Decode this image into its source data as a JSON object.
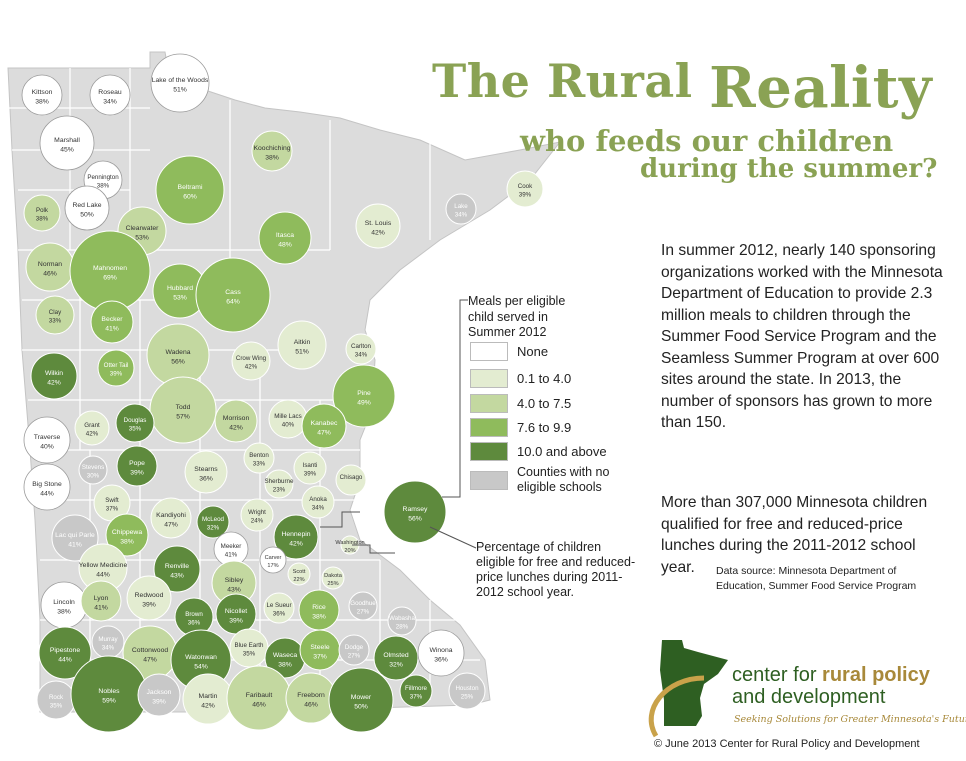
{
  "title": {
    "line1": "The Rural",
    "line1_big": "Reality",
    "line2": "who feeds our children",
    "line3": "during the summer?"
  },
  "intro": "In summer 2012, nearly 140 sponsoring organizations worked with the Minnesota Department of Education to provide 2.3 million meals to children through the Summer Food Service Program and the Seamless Summer Program at over 600 sites around the state. In 2013, the number of sponsors has grown to more than 150.",
  "stat": "More than 307,000 Minnesota children qualified for free and reduced-price lunches during the 2011-2012 school year.",
  "source": "Data source: Minnesota Department of Education, Summer Food Service Program",
  "legend": {
    "title": "Meals per eligible child served in Summer 2012",
    "items": [
      {
        "label": "None",
        "color": "#ffffff"
      },
      {
        "label": "0.1 to 4.0",
        "color": "#e3ecd1"
      },
      {
        "label": "4.0 to 7.5",
        "color": "#c3d8a0"
      },
      {
        "label": "7.6 to 9.9",
        "color": "#8fbb5c"
      },
      {
        "label": "10.0 and above",
        "color": "#5e8a3d"
      },
      {
        "label": "Counties with no eligible schools",
        "color": "#c8c8c8"
      }
    ]
  },
  "pct_note": "Percentage of children eligible for free and reduced-price lunches during 2011-2012 school year.",
  "logo": {
    "line1a": "center for ",
    "line1b": "rural policy",
    "line2": "and development",
    "tagline": "Seeking Solutions for Greater Minnesota's Future"
  },
  "copyright": "© June 2013 Center for Rural Policy and Development",
  "map_colors": {
    "state_fill": "#dcdcdc",
    "county_border": "#ffffff"
  },
  "counties": [
    {
      "name": "Kittson",
      "pct": "38%",
      "cat": 0
    },
    {
      "name": "Roseau",
      "pct": "34%",
      "cat": 0
    },
    {
      "name": "Lake of the Woods",
      "pct": "51%",
      "cat": 0
    },
    {
      "name": "Marshall",
      "pct": "45%",
      "cat": 0
    },
    {
      "name": "Pennington",
      "pct": "38%",
      "cat": 0
    },
    {
      "name": "Red Lake",
      "pct": "50%",
      "cat": 0
    },
    {
      "name": "Polk",
      "pct": "38%",
      "cat": 2
    },
    {
      "name": "Koochiching",
      "pct": "38%",
      "cat": 2
    },
    {
      "name": "Beltrami",
      "pct": "60%",
      "cat": 3
    },
    {
      "name": "Clearwater",
      "pct": "53%",
      "cat": 2
    },
    {
      "name": "Cook",
      "pct": "39%",
      "cat": 1
    },
    {
      "name": "Lake",
      "pct": "34%",
      "cat": 5
    },
    {
      "name": "St. Louis",
      "pct": "42%",
      "cat": 1
    },
    {
      "name": "Itasca",
      "pct": "48%",
      "cat": 3
    },
    {
      "name": "Norman",
      "pct": "46%",
      "cat": 2
    },
    {
      "name": "Mahnomen",
      "pct": "69%",
      "cat": 3
    },
    {
      "name": "Hubbard",
      "pct": "53%",
      "cat": 3
    },
    {
      "name": "Cass",
      "pct": "64%",
      "cat": 3
    },
    {
      "name": "Clay",
      "pct": "33%",
      "cat": 2
    },
    {
      "name": "Becker",
      "pct": "41%",
      "cat": 3
    },
    {
      "name": "Aitkin",
      "pct": "51%",
      "cat": 1
    },
    {
      "name": "Carlton",
      "pct": "34%",
      "cat": 1
    },
    {
      "name": "Wadena",
      "pct": "56%",
      "cat": 2
    },
    {
      "name": "Crow Wing",
      "pct": "42%",
      "cat": 1
    },
    {
      "name": "Wilkin",
      "pct": "42%",
      "cat": 4
    },
    {
      "name": "Otter Tail",
      "pct": "39%",
      "cat": 3
    },
    {
      "name": "Pine",
      "pct": "49%",
      "cat": 3
    },
    {
      "name": "Todd",
      "pct": "57%",
      "cat": 2
    },
    {
      "name": "Grant",
      "pct": "42%",
      "cat": 1
    },
    {
      "name": "Douglas",
      "pct": "35%",
      "cat": 4
    },
    {
      "name": "Morrison",
      "pct": "42%",
      "cat": 2
    },
    {
      "name": "Mille Lacs",
      "pct": "40%",
      "cat": 1
    },
    {
      "name": "Kanabec",
      "pct": "47%",
      "cat": 3
    },
    {
      "name": "Traverse",
      "pct": "40%",
      "cat": 0
    },
    {
      "name": "Stevens",
      "pct": "30%",
      "cat": 5
    },
    {
      "name": "Pope",
      "pct": "39%",
      "cat": 4
    },
    {
      "name": "Benton",
      "pct": "33%",
      "cat": 1
    },
    {
      "name": "Isanti",
      "pct": "39%",
      "cat": 1
    },
    {
      "name": "Stearns",
      "pct": "36%",
      "cat": 1
    },
    {
      "name": "Sherburne",
      "pct": "23%",
      "cat": 1
    },
    {
      "name": "Chisago",
      "pct": "",
      "cat": 1
    },
    {
      "name": "Big Stone",
      "pct": "44%",
      "cat": 0
    },
    {
      "name": "Swift",
      "pct": "37%",
      "cat": 1
    },
    {
      "name": "Anoka",
      "pct": "34%",
      "cat": 1
    },
    {
      "name": "Ramsey",
      "pct": "56%",
      "cat": 4
    },
    {
      "name": "Kandiyohi",
      "pct": "47%",
      "cat": 1
    },
    {
      "name": "McLeod",
      "pct": "32%",
      "cat": 4
    },
    {
      "name": "Wright",
      "pct": "24%",
      "cat": 1
    },
    {
      "name": "Hennepin",
      "pct": "42%",
      "cat": 4
    },
    {
      "name": "Lac qui Parle",
      "pct": "41%",
      "cat": 5
    },
    {
      "name": "Chippewa",
      "pct": "38%",
      "cat": 3
    },
    {
      "name": "Meeker",
      "pct": "41%",
      "cat": 0
    },
    {
      "name": "Carver",
      "pct": "17%",
      "cat": 0
    },
    {
      "name": "Washington",
      "pct": "20%",
      "cat": 1
    },
    {
      "name": "Yellow Medicine",
      "pct": "44%",
      "cat": 1
    },
    {
      "name": "Renville",
      "pct": "43%",
      "cat": 4
    },
    {
      "name": "Scott",
      "pct": "22%",
      "cat": 1
    },
    {
      "name": "Dakota",
      "pct": "25%",
      "cat": 1
    },
    {
      "name": "Sibley",
      "pct": "43%",
      "cat": 2
    },
    {
      "name": "Lincoln",
      "pct": "38%",
      "cat": 0
    },
    {
      "name": "Lyon",
      "pct": "41%",
      "cat": 2
    },
    {
      "name": "Redwood",
      "pct": "39%",
      "cat": 1
    },
    {
      "name": "Le Sueur",
      "pct": "36%",
      "cat": 1
    },
    {
      "name": "Goodhue",
      "pct": "27%",
      "cat": 5
    },
    {
      "name": "Brown",
      "pct": "36%",
      "cat": 4
    },
    {
      "name": "Nicollet",
      "pct": "39%",
      "cat": 4
    },
    {
      "name": "Rice",
      "pct": "38%",
      "cat": 3
    },
    {
      "name": "Wabasha",
      "pct": "28%",
      "cat": 5
    },
    {
      "name": "Pipestone",
      "pct": "44%",
      "cat": 4
    },
    {
      "name": "Murray",
      "pct": "34%",
      "cat": 5
    },
    {
      "name": "Cottonwood",
      "pct": "47%",
      "cat": 2
    },
    {
      "name": "Watonwan",
      "pct": "54%",
      "cat": 4
    },
    {
      "name": "Blue Earth",
      "pct": "35%",
      "cat": 1
    },
    {
      "name": "Waseca",
      "pct": "38%",
      "cat": 4
    },
    {
      "name": "Steele",
      "pct": "37%",
      "cat": 3
    },
    {
      "name": "Dodge",
      "pct": "27%",
      "cat": 5
    },
    {
      "name": "Olmsted",
      "pct": "32%",
      "cat": 4
    },
    {
      "name": "Winona",
      "pct": "36%",
      "cat": 0
    },
    {
      "name": "Rock",
      "pct": "35%",
      "cat": 5
    },
    {
      "name": "Nobles",
      "pct": "59%",
      "cat": 4
    },
    {
      "name": "Jackson",
      "pct": "39%",
      "cat": 5
    },
    {
      "name": "Martin",
      "pct": "42%",
      "cat": 1
    },
    {
      "name": "Faribault",
      "pct": "46%",
      "cat": 2
    },
    {
      "name": "Freeborn",
      "pct": "46%",
      "cat": 2
    },
    {
      "name": "Mower",
      "pct": "50%",
      "cat": 4
    },
    {
      "name": "Fillmore",
      "pct": "37%",
      "cat": 4
    },
    {
      "name": "Houston",
      "pct": "25%",
      "cat": 5
    }
  ]
}
